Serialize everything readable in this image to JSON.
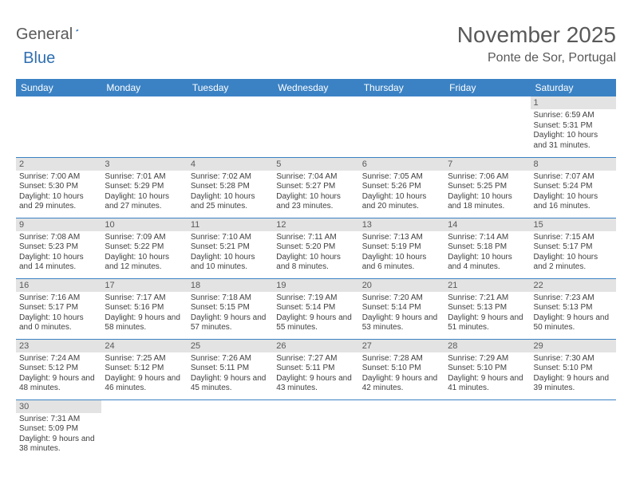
{
  "logo": {
    "part1": "General",
    "part2": "Blue"
  },
  "title": "November 2025",
  "location": "Ponte de Sor, Portugal",
  "colors": {
    "header_bg": "#3b82c4",
    "header_text": "#ffffff",
    "daynum_bg": "#e3e3e3",
    "border": "#3b82c4",
    "text": "#404040",
    "title_color": "#595959"
  },
  "weekdays": [
    "Sunday",
    "Monday",
    "Tuesday",
    "Wednesday",
    "Thursday",
    "Friday",
    "Saturday"
  ],
  "weeks": [
    [
      null,
      null,
      null,
      null,
      null,
      null,
      {
        "n": "1",
        "sr": "6:59 AM",
        "ss": "5:31 PM",
        "dl": "10 hours and 31 minutes."
      }
    ],
    [
      {
        "n": "2",
        "sr": "7:00 AM",
        "ss": "5:30 PM",
        "dl": "10 hours and 29 minutes."
      },
      {
        "n": "3",
        "sr": "7:01 AM",
        "ss": "5:29 PM",
        "dl": "10 hours and 27 minutes."
      },
      {
        "n": "4",
        "sr": "7:02 AM",
        "ss": "5:28 PM",
        "dl": "10 hours and 25 minutes."
      },
      {
        "n": "5",
        "sr": "7:04 AM",
        "ss": "5:27 PM",
        "dl": "10 hours and 23 minutes."
      },
      {
        "n": "6",
        "sr": "7:05 AM",
        "ss": "5:26 PM",
        "dl": "10 hours and 20 minutes."
      },
      {
        "n": "7",
        "sr": "7:06 AM",
        "ss": "5:25 PM",
        "dl": "10 hours and 18 minutes."
      },
      {
        "n": "8",
        "sr": "7:07 AM",
        "ss": "5:24 PM",
        "dl": "10 hours and 16 minutes."
      }
    ],
    [
      {
        "n": "9",
        "sr": "7:08 AM",
        "ss": "5:23 PM",
        "dl": "10 hours and 14 minutes."
      },
      {
        "n": "10",
        "sr": "7:09 AM",
        "ss": "5:22 PM",
        "dl": "10 hours and 12 minutes."
      },
      {
        "n": "11",
        "sr": "7:10 AM",
        "ss": "5:21 PM",
        "dl": "10 hours and 10 minutes."
      },
      {
        "n": "12",
        "sr": "7:11 AM",
        "ss": "5:20 PM",
        "dl": "10 hours and 8 minutes."
      },
      {
        "n": "13",
        "sr": "7:13 AM",
        "ss": "5:19 PM",
        "dl": "10 hours and 6 minutes."
      },
      {
        "n": "14",
        "sr": "7:14 AM",
        "ss": "5:18 PM",
        "dl": "10 hours and 4 minutes."
      },
      {
        "n": "15",
        "sr": "7:15 AM",
        "ss": "5:17 PM",
        "dl": "10 hours and 2 minutes."
      }
    ],
    [
      {
        "n": "16",
        "sr": "7:16 AM",
        "ss": "5:17 PM",
        "dl": "10 hours and 0 minutes."
      },
      {
        "n": "17",
        "sr": "7:17 AM",
        "ss": "5:16 PM",
        "dl": "9 hours and 58 minutes."
      },
      {
        "n": "18",
        "sr": "7:18 AM",
        "ss": "5:15 PM",
        "dl": "9 hours and 57 minutes."
      },
      {
        "n": "19",
        "sr": "7:19 AM",
        "ss": "5:14 PM",
        "dl": "9 hours and 55 minutes."
      },
      {
        "n": "20",
        "sr": "7:20 AM",
        "ss": "5:14 PM",
        "dl": "9 hours and 53 minutes."
      },
      {
        "n": "21",
        "sr": "7:21 AM",
        "ss": "5:13 PM",
        "dl": "9 hours and 51 minutes."
      },
      {
        "n": "22",
        "sr": "7:23 AM",
        "ss": "5:13 PM",
        "dl": "9 hours and 50 minutes."
      }
    ],
    [
      {
        "n": "23",
        "sr": "7:24 AM",
        "ss": "5:12 PM",
        "dl": "9 hours and 48 minutes."
      },
      {
        "n": "24",
        "sr": "7:25 AM",
        "ss": "5:12 PM",
        "dl": "9 hours and 46 minutes."
      },
      {
        "n": "25",
        "sr": "7:26 AM",
        "ss": "5:11 PM",
        "dl": "9 hours and 45 minutes."
      },
      {
        "n": "26",
        "sr": "7:27 AM",
        "ss": "5:11 PM",
        "dl": "9 hours and 43 minutes."
      },
      {
        "n": "27",
        "sr": "7:28 AM",
        "ss": "5:10 PM",
        "dl": "9 hours and 42 minutes."
      },
      {
        "n": "28",
        "sr": "7:29 AM",
        "ss": "5:10 PM",
        "dl": "9 hours and 41 minutes."
      },
      {
        "n": "29",
        "sr": "7:30 AM",
        "ss": "5:10 PM",
        "dl": "9 hours and 39 minutes."
      }
    ],
    [
      {
        "n": "30",
        "sr": "7:31 AM",
        "ss": "5:09 PM",
        "dl": "9 hours and 38 minutes."
      },
      null,
      null,
      null,
      null,
      null,
      null
    ]
  ],
  "labels": {
    "sunrise": "Sunrise:",
    "sunset": "Sunset:",
    "daylight": "Daylight:"
  }
}
